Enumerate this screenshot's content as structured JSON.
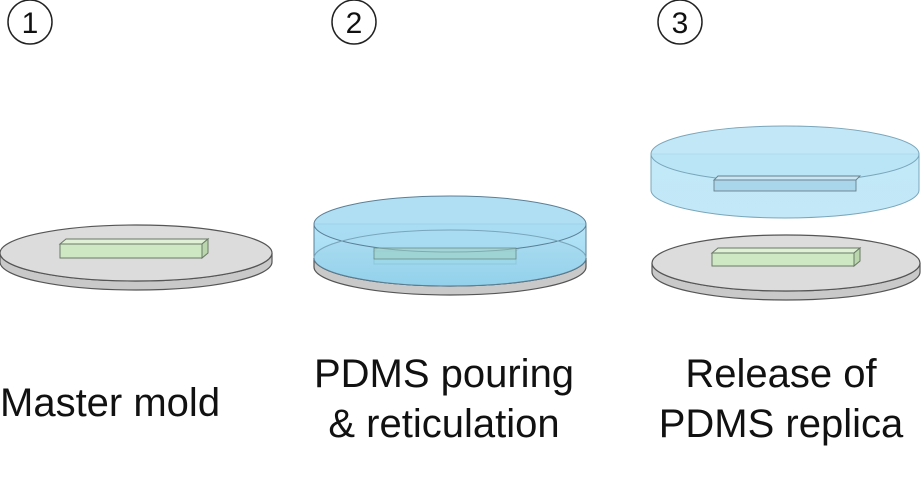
{
  "steps": [
    {
      "number": "1",
      "caption_lines": [
        "Master mold"
      ]
    },
    {
      "number": "2",
      "caption_lines": [
        "PDMS pouring",
        "& reticulation"
      ]
    },
    {
      "number": "3",
      "caption_lines": [
        "Release of",
        "PDMS replica"
      ]
    }
  ],
  "colors": {
    "dish_fill": "#dcdcdc",
    "dish_edge": "#555555",
    "mold_fill": "#cfe8c4",
    "mold_edge": "#6a7a66",
    "pdms_fill": "#8fd3f0",
    "pdms_edge": "#5a7f95"
  }
}
